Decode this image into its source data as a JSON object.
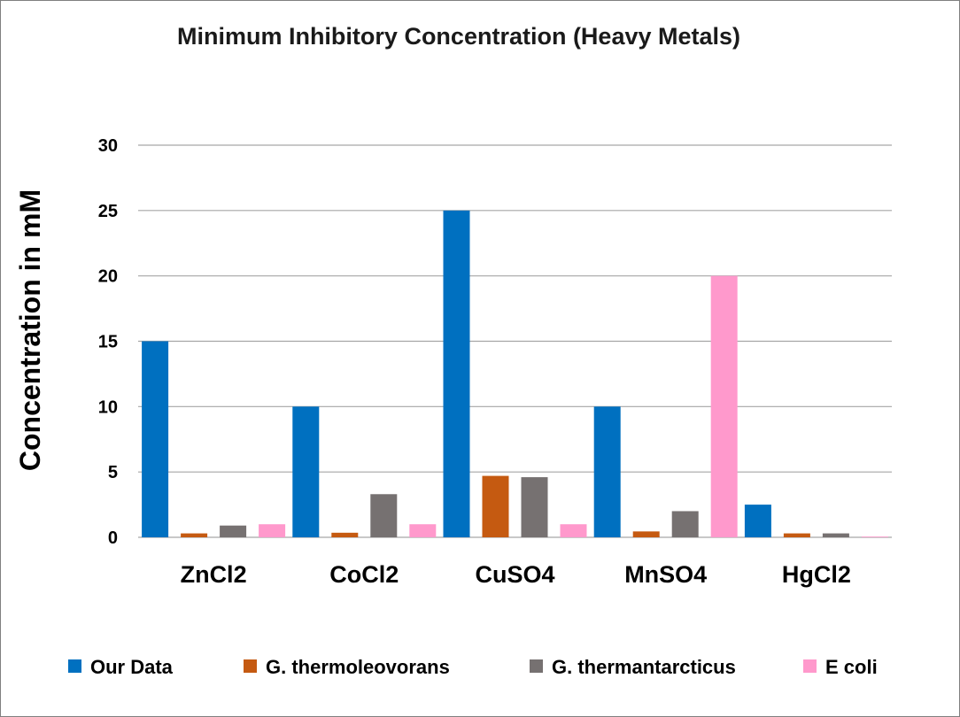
{
  "chart_data": {
    "type": "bar",
    "title": "Minimum Inhibitory Concentration (Heavy Metals)",
    "xlabel": "",
    "ylabel": "Concentration in mM",
    "ylim": [
      0,
      30
    ],
    "yticks": [
      0,
      5,
      10,
      15,
      20,
      25,
      30
    ],
    "grid": true,
    "legend_position": "bottom",
    "categories": [
      "ZnCl2",
      "CoCl2",
      "CuSO4",
      "MnSO4",
      "HgCl2"
    ],
    "series": [
      {
        "name": "Our Data",
        "color": "#0070c0",
        "values": [
          15,
          10,
          25,
          10,
          2.5
        ]
      },
      {
        "name": "G. thermoleovorans",
        "color": "#c55a11",
        "values": [
          0.3,
          0.35,
          4.7,
          0.45,
          0.3
        ]
      },
      {
        "name": "G. thermantarcticus",
        "color": "#767171",
        "values": [
          0.9,
          3.3,
          4.6,
          2.0,
          0.3
        ]
      },
      {
        "name": "E coli",
        "color": "#ff99cc",
        "values": [
          1.0,
          1.0,
          1.0,
          20,
          0.05
        ]
      }
    ]
  }
}
